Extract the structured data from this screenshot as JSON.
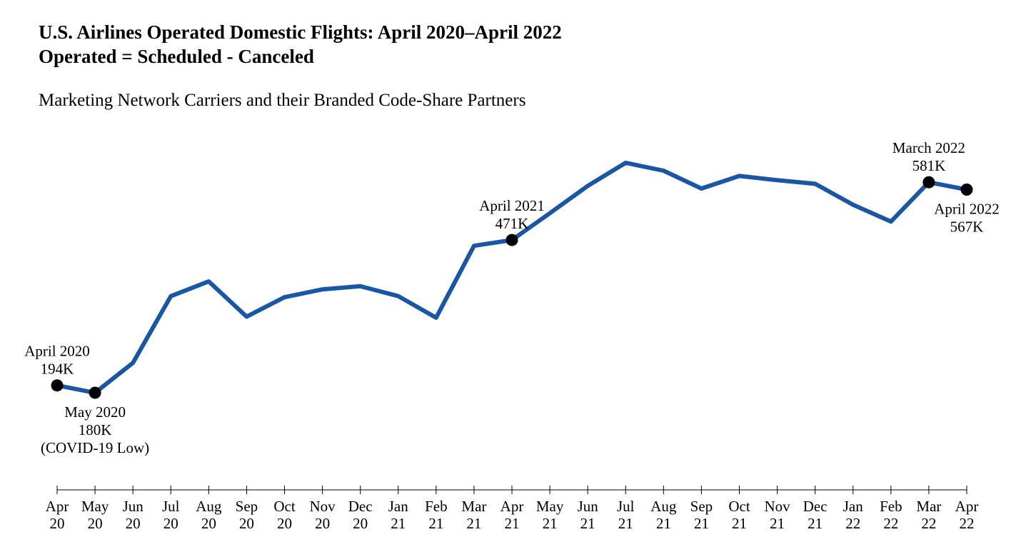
{
  "header": {
    "title_line1": "U.S. Airlines Operated Domestic Flights: April 2020–April 2022",
    "title_line2": "Operated = Scheduled - Canceled",
    "subtitle": "Marketing Network Carriers and their Branded Code-Share Partners"
  },
  "chart_data": {
    "type": "line",
    "title": "U.S. Airlines Operated Domestic Flights: April 2020–April 2022",
    "subtitle": "Marketing Network Carriers and their Branded Code-Share Partners",
    "xlabel": "",
    "ylabel": "",
    "grid": false,
    "legend": "none",
    "line_color": "#1a56a6",
    "categories": [
      [
        "Apr",
        "20"
      ],
      [
        "May",
        "20"
      ],
      [
        "Jun",
        "20"
      ],
      [
        "Jul",
        "20"
      ],
      [
        "Aug",
        "20"
      ],
      [
        "Sep",
        "20"
      ],
      [
        "Oct",
        "20"
      ],
      [
        "Nov",
        "20"
      ],
      [
        "Dec",
        "20"
      ],
      [
        "Jan",
        "21"
      ],
      [
        "Feb",
        "21"
      ],
      [
        "Mar",
        "21"
      ],
      [
        "Apr",
        "21"
      ],
      [
        "May",
        "21"
      ],
      [
        "Jun",
        "21"
      ],
      [
        "Jul",
        "21"
      ],
      [
        "Aug",
        "21"
      ],
      [
        "Sep",
        "21"
      ],
      [
        "Oct",
        "21"
      ],
      [
        "Nov",
        "21"
      ],
      [
        "Dec",
        "21"
      ],
      [
        "Jan",
        "22"
      ],
      [
        "Feb",
        "22"
      ],
      [
        "Mar",
        "22"
      ],
      [
        "Apr",
        "22"
      ]
    ],
    "values": [
      194,
      180,
      237,
      364,
      392,
      325,
      362,
      377,
      383,
      364,
      323,
      460,
      471,
      522,
      574,
      618,
      603,
      569,
      593,
      585,
      578,
      538,
      506,
      581,
      567
    ],
    "unit": "K flights",
    "highlighted_points": [
      {
        "index": 0,
        "lines": [
          "April 2020",
          "194K"
        ],
        "anchor": "above"
      },
      {
        "index": 1,
        "lines": [
          "May 2020",
          "180K",
          "(COVID-19 Low)"
        ],
        "anchor": "below"
      },
      {
        "index": 12,
        "lines": [
          "April 2021",
          "471K"
        ],
        "anchor": "above"
      },
      {
        "index": 23,
        "lines": [
          "March 2022",
          "581K"
        ],
        "anchor": "above"
      },
      {
        "index": 24,
        "lines": [
          "April 2022",
          "567K"
        ],
        "anchor": "below"
      }
    ]
  }
}
